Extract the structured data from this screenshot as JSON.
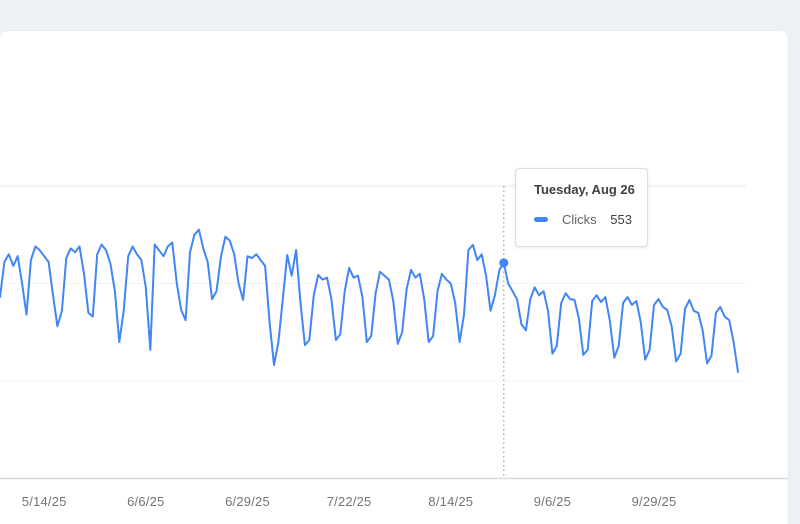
{
  "page": {
    "background_color": "#edf0f4",
    "card_background_color": "#ffffff"
  },
  "tooltip": {
    "title": "Tuesday, Aug 26",
    "series_label": "Clicks",
    "value": "553",
    "marker_color": "#4285f4"
  },
  "chart_data": {
    "type": "line",
    "title": "",
    "xlabel": "",
    "ylabel": "",
    "legend_position": "none",
    "grid": "horizontal-faint",
    "ylim": [
      0,
      1000
    ],
    "gridline_values": [
      250,
      500,
      750
    ],
    "x_tick_labels": [
      "5/14/25",
      "6/6/25",
      "6/29/25",
      "7/22/25",
      "8/14/25",
      "9/6/25",
      "9/29/25"
    ],
    "x_tick_day_indices": [
      10,
      33,
      56,
      79,
      102,
      125,
      148
    ],
    "start_date": "5/4/25",
    "interval": "daily",
    "highlight": {
      "day_index": 114,
      "date_label": "Tuesday, Aug 26",
      "series": "Clicks",
      "value": 553
    },
    "series": [
      {
        "name": "Clicks",
        "color": "#4285f4",
        "values": [
          465,
          555,
          575,
          545,
          570,
          500,
          420,
          560,
          595,
          585,
          570,
          555,
          470,
          390,
          430,
          565,
          590,
          580,
          595,
          525,
          425,
          415,
          575,
          600,
          585,
          550,
          480,
          350,
          430,
          570,
          595,
          575,
          560,
          490,
          330,
          600,
          585,
          570,
          595,
          605,
          500,
          432,
          406,
          580,
          625,
          638,
          590,
          555,
          460,
          480,
          570,
          620,
          610,
          575,
          500,
          458,
          570,
          565,
          575,
          560,
          545,
          400,
          291,
          350,
          460,
          573,
          520,
          586,
          450,
          342,
          355,
          470,
          522,
          510,
          515,
          460,
          355,
          370,
          480,
          540,
          515,
          520,
          465,
          350,
          365,
          475,
          530,
          520,
          510,
          455,
          345,
          375,
          485,
          535,
          515,
          525,
          460,
          350,
          365,
          480,
          525,
          510,
          500,
          450,
          350,
          420,
          586,
          599,
          560,
          575,
          520,
          430,
          470,
          535,
          553,
          500,
          480,
          460,
          395,
          380,
          460,
          490,
          470,
          480,
          430,
          320,
          340,
          450,
          475,
          460,
          458,
          410,
          317,
          330,
          455,
          470,
          452,
          465,
          405,
          310,
          340,
          450,
          465,
          445,
          455,
          400,
          305,
          330,
          445,
          460,
          440,
          432,
          390,
          300,
          320,
          435,
          458,
          430,
          425,
          380,
          295,
          315,
          425,
          440,
          415,
          406,
          350,
          273
        ]
      }
    ],
    "colors": {
      "line": "#4285f4",
      "gridline_major": "#e4e7ea",
      "gridline_minor": "#f2f3f5",
      "axis_line": "#d6d9dd",
      "crosshair": "#9aa0a6",
      "tick_label": "#70757a"
    }
  }
}
